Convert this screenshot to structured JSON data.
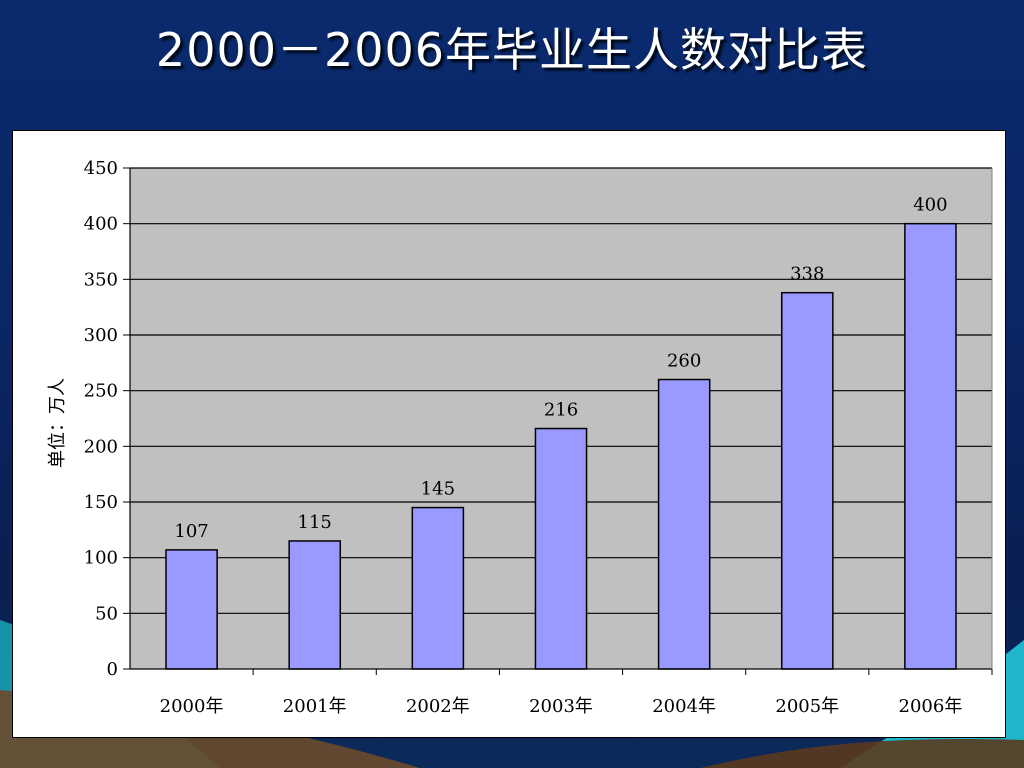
{
  "slide": {
    "title": "2000－2006年毕业生人数对比表"
  },
  "colors": {
    "background": "#0a2a6e",
    "plot_area": "#c0c0c0",
    "bar_fill": "#9999ff",
    "bar_stroke": "#000000",
    "gridline": "#000000"
  },
  "chart_data": {
    "type": "bar",
    "title": "",
    "xlabel": "",
    "ylabel": "单位：万人",
    "categories": [
      "2000年",
      "2001年",
      "2002年",
      "2003年",
      "2004年",
      "2005年",
      "2006年"
    ],
    "values": [
      107,
      115,
      145,
      216,
      260,
      338,
      400
    ],
    "value_labels": [
      "107",
      "115",
      "145",
      "216",
      "260",
      "338",
      "400"
    ],
    "ylim": [
      0,
      450
    ],
    "yticks": [
      0,
      50,
      100,
      150,
      200,
      250,
      300,
      350,
      400,
      450
    ],
    "grid": true,
    "legend": "none"
  }
}
